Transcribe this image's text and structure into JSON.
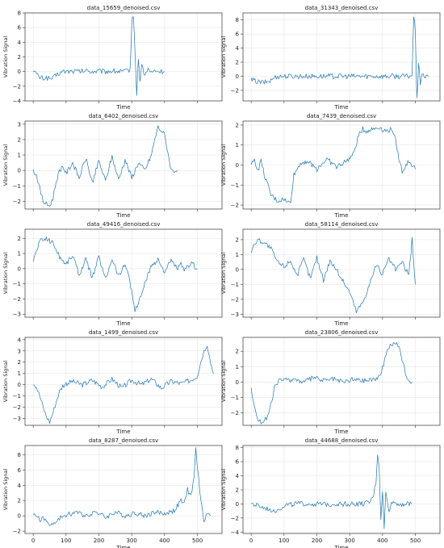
{
  "chart_data": [
    {
      "type": "line",
      "title": "data_15659_denoised.csv",
      "xlabel": "Time",
      "ylabel": "Vibration Signal",
      "xlim": [
        -25,
        575
      ],
      "ylim": [
        -4,
        8
      ],
      "yticks": [
        -4,
        -2,
        0,
        2,
        4,
        6,
        8
      ],
      "xticks": [
        0,
        100,
        200,
        300,
        400,
        500
      ],
      "grid": true,
      "color": "#1f77b4",
      "series": [
        {
          "x": [
            0,
            10,
            20,
            30,
            40,
            50,
            60,
            70,
            80,
            90,
            100,
            120,
            140,
            160,
            180,
            200,
            220,
            240,
            260,
            280,
            295,
            300,
            305,
            310,
            315,
            320,
            325,
            330,
            340,
            350,
            360,
            370,
            380,
            390,
            400
          ],
          "y": [
            0.3,
            -0.4,
            -0.8,
            -0.9,
            -0.8,
            -1.0,
            -0.9,
            -0.5,
            -0.2,
            0.0,
            0.0,
            0.05,
            0.0,
            0.1,
            0.0,
            0.05,
            0.0,
            0.1,
            0.0,
            0.0,
            0.3,
            6.5,
            7.8,
            3.0,
            -3.5,
            2.0,
            -1.5,
            1.0,
            -0.6,
            0.4,
            -0.2,
            0.1,
            0.0,
            0.0,
            0.0
          ]
        }
      ]
    },
    {
      "type": "line",
      "title": "data_31343_denoised.csv",
      "xlabel": "Time",
      "ylabel": "Vibration Signal",
      "xlim": [
        -25,
        575
      ],
      "ylim": [
        -3.5,
        9
      ],
      "yticks": [
        -2,
        0,
        2,
        4,
        6,
        8
      ],
      "xticks": [
        0,
        100,
        200,
        300,
        400,
        500
      ],
      "grid": true,
      "color": "#1f77b4",
      "series": [
        {
          "x": [
            0,
            20,
            40,
            60,
            70,
            80,
            100,
            150,
            200,
            250,
            300,
            350,
            400,
            450,
            480,
            490,
            495,
            500,
            505,
            510,
            515,
            520,
            530,
            540
          ],
          "y": [
            -0.5,
            -0.8,
            -0.9,
            -0.6,
            -0.2,
            0.0,
            0.0,
            0.0,
            0.0,
            0.0,
            0.0,
            0.0,
            0.0,
            0.0,
            0.0,
            0.2,
            8.5,
            6.5,
            -3.0,
            1.5,
            -1.0,
            0.5,
            -0.2,
            0.0
          ]
        }
      ]
    },
    {
      "type": "line",
      "title": "data_6402_denoised.csv",
      "xlabel": "Time",
      "ylabel": "Vibration Signal",
      "xlim": [
        -25,
        575
      ],
      "ylim": [
        -2.5,
        3.2
      ],
      "yticks": [
        -2,
        -1,
        0,
        1,
        2,
        3
      ],
      "xticks": [
        0,
        100,
        200,
        300,
        400,
        500
      ],
      "grid": true,
      "color": "#1f77b4",
      "series": [
        {
          "x": [
            0,
            10,
            20,
            30,
            40,
            50,
            60,
            70,
            80,
            90,
            100,
            120,
            140,
            160,
            180,
            200,
            220,
            240,
            260,
            280,
            300,
            320,
            340,
            360,
            370,
            380,
            390,
            400,
            410,
            420,
            430,
            440
          ],
          "y": [
            0.0,
            -0.3,
            -1.2,
            -2.0,
            -2.2,
            -2.3,
            -1.8,
            -0.7,
            0.0,
            0.3,
            -0.2,
            0.5,
            -0.5,
            0.8,
            -0.8,
            0.6,
            -0.7,
            0.9,
            -0.6,
            0.7,
            -0.5,
            0.5,
            0.0,
            1.0,
            2.0,
            2.8,
            2.6,
            2.3,
            1.2,
            0.0,
            0.0,
            0.0
          ]
        }
      ]
    },
    {
      "type": "line",
      "title": "data_7439_denoised.csv",
      "xlabel": "Time",
      "ylabel": "Vibration Signal",
      "xlim": [
        -25,
        575
      ],
      "ylim": [
        -2.2,
        2.2
      ],
      "yticks": [
        -2,
        -1,
        0,
        1,
        2
      ],
      "xticks": [
        0,
        100,
        200,
        300,
        400,
        500
      ],
      "grid": true,
      "color": "#1f77b4",
      "series": [
        {
          "x": [
            0,
            10,
            20,
            30,
            40,
            60,
            80,
            100,
            110,
            120,
            130,
            150,
            170,
            200,
            230,
            260,
            290,
            310,
            330,
            340,
            350,
            370,
            390,
            410,
            430,
            440,
            450,
            460,
            480,
            500
          ],
          "y": [
            0.0,
            0.3,
            -0.3,
            0.2,
            -0.5,
            -1.5,
            -1.8,
            -1.7,
            -1.9,
            -1.8,
            -0.5,
            0.1,
            0.2,
            -0.2,
            0.3,
            -0.1,
            0.2,
            0.5,
            1.6,
            1.8,
            1.7,
            1.8,
            1.9,
            1.7,
            1.8,
            1.2,
            0.3,
            -0.3,
            0.2,
            -0.2
          ]
        }
      ]
    },
    {
      "type": "line",
      "title": "data_49416_denoised.csv",
      "xlabel": "Time",
      "ylabel": "Vibration Signal",
      "xlim": [
        -25,
        575
      ],
      "ylim": [
        -3.2,
        2.6
      ],
      "yticks": [
        -3,
        -2,
        -1,
        0,
        1,
        2
      ],
      "xticks": [
        0,
        100,
        200,
        300,
        400,
        500
      ],
      "grid": true,
      "color": "#1f77b4",
      "series": [
        {
          "x": [
            0,
            10,
            20,
            40,
            60,
            80,
            100,
            120,
            140,
            160,
            180,
            200,
            220,
            240,
            260,
            280,
            290,
            300,
            310,
            320,
            340,
            360,
            380,
            400,
            420,
            440,
            450,
            460,
            480,
            500
          ],
          "y": [
            0.5,
            1.2,
            1.8,
            2.0,
            1.7,
            0.8,
            0.3,
            0.9,
            -0.4,
            0.6,
            -0.6,
            0.8,
            -0.7,
            0.7,
            -0.5,
            0.3,
            -0.3,
            -1.5,
            -2.8,
            -2.3,
            -1.0,
            0.2,
            0.6,
            -0.2,
            0.5,
            0.0,
            0.3,
            -0.2,
            0.4,
            0.0
          ]
        }
      ]
    },
    {
      "type": "line",
      "title": "data_58114_denoised.csv",
      "xlabel": "Time",
      "ylabel": "Vibration Signal",
      "xlim": [
        -25,
        575
      ],
      "ylim": [
        -3.2,
        2.7
      ],
      "yticks": [
        -3,
        -2,
        -1,
        0,
        1,
        2
      ],
      "xticks": [
        0,
        100,
        200,
        300,
        400,
        500
      ],
      "grid": true,
      "color": "#1f77b4",
      "series": [
        {
          "x": [
            0,
            10,
            20,
            40,
            60,
            80,
            100,
            120,
            140,
            160,
            180,
            200,
            220,
            240,
            260,
            280,
            300,
            320,
            340,
            360,
            380,
            400,
            420,
            440,
            460,
            480,
            490,
            500
          ],
          "y": [
            1.2,
            1.7,
            2.0,
            1.8,
            1.4,
            0.5,
            0.2,
            0.6,
            -0.4,
            0.7,
            -0.6,
            0.8,
            -0.7,
            0.6,
            0.0,
            -0.8,
            -1.5,
            -2.8,
            -2.2,
            -1.0,
            0.3,
            -0.3,
            0.7,
            0.0,
            0.5,
            -0.4,
            2.0,
            -1.0
          ]
        }
      ]
    },
    {
      "type": "line",
      "title": "data_1499_denoised.csv",
      "xlabel": "Time",
      "ylabel": "Vibration Signal",
      "xlim": [
        -25,
        575
      ],
      "ylim": [
        -3.6,
        4.2
      ],
      "yticks": [
        -3,
        -2,
        -1,
        0,
        1,
        2,
        3,
        4
      ],
      "xticks": [
        0,
        100,
        200,
        300,
        400,
        500
      ],
      "grid": true,
      "color": "#1f77b4",
      "series": [
        {
          "x": [
            0,
            10,
            20,
            30,
            40,
            50,
            60,
            70,
            80,
            90,
            100,
            120,
            150,
            180,
            210,
            240,
            270,
            300,
            330,
            360,
            390,
            420,
            450,
            480,
            500,
            510,
            520,
            530,
            540,
            550
          ],
          "y": [
            0.2,
            -0.2,
            -1.0,
            -2.0,
            -2.8,
            -3.3,
            -2.5,
            -1.5,
            -0.6,
            -0.1,
            0.1,
            0.3,
            0.0,
            0.4,
            -0.2,
            0.5,
            -0.3,
            0.4,
            0.0,
            0.5,
            -0.3,
            0.3,
            0.1,
            0.4,
            0.8,
            2.0,
            3.0,
            3.6,
            2.0,
            1.0
          ]
        }
      ]
    },
    {
      "type": "line",
      "title": "data_23806_denoised.csv",
      "xlabel": "Time",
      "ylabel": "Vibration Signal",
      "xlim": [
        -25,
        575
      ],
      "ylim": [
        -2.8,
        2.9
      ],
      "yticks": [
        -2,
        -1,
        0,
        1,
        2
      ],
      "xticks": [
        0,
        100,
        200,
        300,
        400,
        500
      ],
      "grid": true,
      "color": "#1f77b4",
      "series": [
        {
          "x": [
            0,
            10,
            20,
            30,
            40,
            50,
            60,
            70,
            80,
            90,
            100,
            130,
            160,
            190,
            220,
            250,
            280,
            310,
            340,
            370,
            390,
            400,
            410,
            420,
            430,
            440,
            450,
            460,
            470,
            480,
            490
          ],
          "y": [
            -0.5,
            -1.5,
            -2.4,
            -2.6,
            -2.5,
            -2.2,
            -1.5,
            -0.5,
            0.0,
            0.2,
            0.1,
            0.2,
            0.0,
            0.3,
            0.1,
            0.2,
            0.0,
            0.2,
            0.1,
            0.2,
            0.3,
            0.9,
            1.8,
            2.3,
            2.5,
            2.5,
            2.3,
            1.5,
            0.6,
            0.1,
            0.0
          ]
        }
      ]
    },
    {
      "type": "line",
      "title": "data_8287_denoised.csv",
      "xlabel": "Time",
      "ylabel": "Vibration Signal",
      "xlim": [
        -25,
        575
      ],
      "ylim": [
        -2.3,
        9.2
      ],
      "yticks": [
        -2,
        0,
        2,
        4,
        6,
        8
      ],
      "xticks": [
        0,
        100,
        200,
        300,
        400,
        500
      ],
      "grid": true,
      "color": "#1f77b4",
      "series": [
        {
          "x": [
            0,
            10,
            20,
            30,
            40,
            50,
            60,
            70,
            80,
            90,
            100,
            130,
            160,
            190,
            220,
            250,
            280,
            310,
            340,
            370,
            400,
            430,
            450,
            460,
            470,
            480,
            490,
            495,
            500,
            510,
            520,
            530,
            540
          ],
          "y": [
            0.0,
            0.1,
            -0.5,
            -0.3,
            -0.8,
            -1.0,
            -1.2,
            -0.8,
            -0.4,
            0.0,
            0.1,
            0.5,
            0.0,
            0.6,
            -0.2,
            0.5,
            0.0,
            0.4,
            0.0,
            0.5,
            0.3,
            0.7,
            2.0,
            1.5,
            3.5,
            2.5,
            5.0,
            8.8,
            6.5,
            2.0,
            -0.5,
            0.3,
            0.0
          ]
        }
      ]
    },
    {
      "type": "line",
      "title": "data_44688_denoised.csv",
      "xlabel": "Time",
      "ylabel": "Vibration Signal",
      "xlim": [
        -25,
        575
      ],
      "ylim": [
        -4.2,
        8.3
      ],
      "yticks": [
        -4,
        -2,
        0,
        2,
        4,
        6,
        8
      ],
      "xticks": [
        0,
        100,
        200,
        300,
        400,
        500
      ],
      "grid": true,
      "color": "#1f77b4",
      "series": [
        {
          "x": [
            0,
            20,
            40,
            60,
            80,
            90,
            100,
            130,
            160,
            190,
            220,
            250,
            280,
            310,
            340,
            360,
            370,
            380,
            385,
            390,
            395,
            400,
            405,
            410,
            420,
            430,
            450,
            470,
            490
          ],
          "y": [
            0.0,
            -0.3,
            -0.6,
            -0.8,
            -0.9,
            -0.6,
            -0.2,
            0.0,
            0.0,
            0.0,
            -0.1,
            0.0,
            0.0,
            0.0,
            0.0,
            0.2,
            0.8,
            3.0,
            7.2,
            5.0,
            -2.5,
            2.0,
            -3.5,
            1.5,
            -0.8,
            0.3,
            0.0,
            0.0,
            0.0
          ]
        }
      ]
    }
  ]
}
